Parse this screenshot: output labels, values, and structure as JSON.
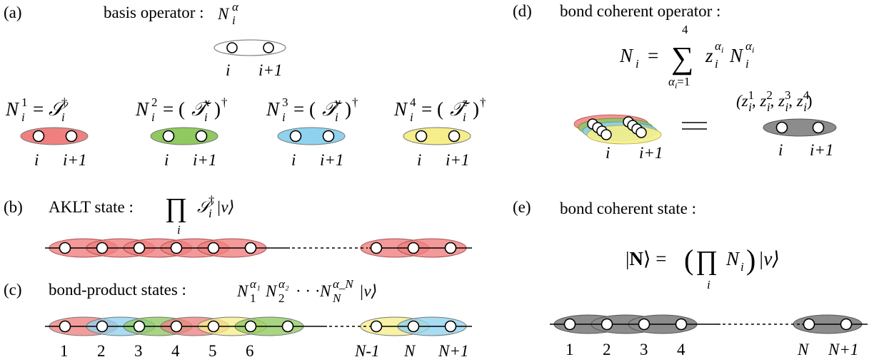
{
  "colors": {
    "red": "#f08080",
    "green": "#8fc960",
    "blue": "#8fd2f0",
    "yellow": "#f5ee8a",
    "gray": "#8c8c8c",
    "white": "#ffffff",
    "outline": "#555555"
  },
  "panels": {
    "a": {
      "tag": "(a)",
      "title": "basis operator :",
      "operator": "N",
      "operator_sub": "i",
      "operator_sup": "α",
      "bond_i": "i",
      "bond_i1": "i+1",
      "defs": [
        {
          "lhs": "N",
          "sub": "i",
          "sup": "1",
          "rhs": "= 𝒮",
          "rsub": "i",
          "rsup": "†",
          "paren": false,
          "color": "red"
        },
        {
          "lhs": "N",
          "sub": "i",
          "sup": "2",
          "rhs": "= (𝒯",
          "rsub": "i",
          "rsup": "x",
          "tail": ")",
          "tailsup": "†",
          "paren": true,
          "color": "green"
        },
        {
          "lhs": "N",
          "sub": "i",
          "sup": "3",
          "rhs": "= (𝒯",
          "rsub": "i",
          "rsup": "y",
          "tail": ")",
          "tailsup": "†",
          "paren": true,
          "color": "blue"
        },
        {
          "lhs": "N",
          "sub": "i",
          "sup": "4",
          "rhs": "= (𝒯",
          "rsub": "i",
          "rsup": "z",
          "tail": ")",
          "tailsup": "†",
          "paren": true,
          "color": "yellow"
        }
      ]
    },
    "b": {
      "tag": "(b)",
      "title": "AKLT state :",
      "prod": "∏",
      "prod_sub": "i",
      "op": "𝒮",
      "op_sub": "i",
      "op_sup": "†",
      "ket": "|v⟩"
    },
    "c": {
      "tag": "(c)",
      "title": "bond-product states :",
      "formula": "N",
      "labels": [
        "1",
        "2",
        "3",
        "4",
        "5",
        "6"
      ],
      "end_labels": [
        "N-1",
        "N",
        "N+1"
      ],
      "sequence": [
        "red",
        "blue",
        "green",
        "red",
        "yellow",
        "green"
      ],
      "end_sequence": [
        "yellow",
        "blue"
      ]
    },
    "d": {
      "tag": "(d)",
      "title": "bond coherent operator :",
      "lhs": "N",
      "lhs_sub": "i",
      "eq": "=",
      "sum": "∑",
      "sum_top": "4",
      "sum_bottom": "α",
      "sum_bottom_sub": "i",
      "sum_bottom_rest": "=1",
      "z": "z",
      "z_sub": "i",
      "z_sup": "α",
      "n": "N",
      "n_sub": "i",
      "n_sup": "α",
      "vector": "(z",
      "bond_i": "i",
      "bond_i1": "i+1",
      "equals_sign": "="
    },
    "e": {
      "tag": "(e)",
      "title": "bond coherent state :",
      "ket_lhs": "|N⟩ =",
      "paren_open": "(",
      "prod": "∏",
      "prod_sub": "i",
      "op": "N",
      "op_sub": "i",
      "paren_close": ")",
      "ket": "|v⟩",
      "labels": [
        "1",
        "2",
        "3",
        "4"
      ],
      "end_labels": [
        "N",
        "N+1"
      ]
    }
  }
}
